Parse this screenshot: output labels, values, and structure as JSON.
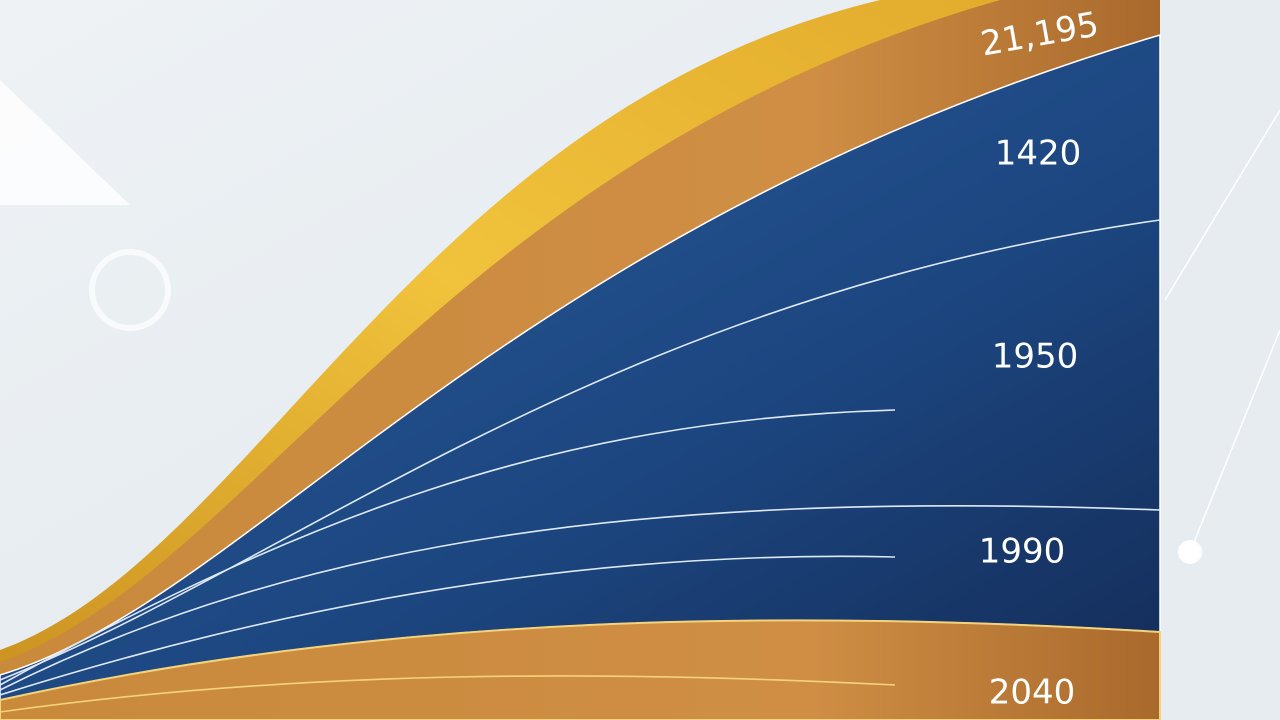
{
  "labels": [
    "21,195",
    "1420",
    "1950",
    "1990",
    "2040"
  ]
}
